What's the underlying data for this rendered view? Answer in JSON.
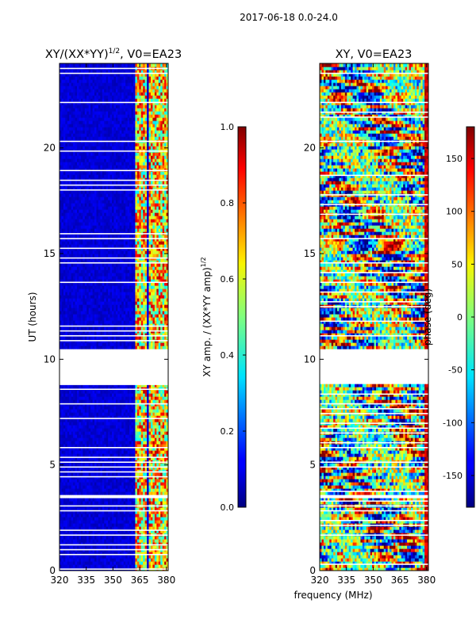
{
  "suptitle": "2017-06-18 0.0-24.0",
  "common_xlabel": "frequency (MHz)",
  "chart_data": [
    {
      "type": "heatmap",
      "title": "XY/(XX*YY)^1/2, V0=EA23",
      "title_main": "XY/(XX*YY)",
      "title_sup": "1/2",
      "title_tail": ", V0=EA23",
      "ylabel": "UT (hours)",
      "xlim": [
        320,
        381
      ],
      "ylim": [
        0,
        24
      ],
      "xticks": [
        "320",
        "335",
        "350",
        "365",
        "380"
      ],
      "yticks": [
        "0",
        "5",
        "10",
        "15",
        "20"
      ],
      "colorbar": {
        "label": "XY amp. / (XX*YY amp)^1/2",
        "label_main": "XY amp. / (XX*YY amp)",
        "label_sup": "1/2",
        "range": [
          0.0,
          1.0
        ],
        "ticks": [
          "0.0",
          "0.2",
          "0.4",
          "0.6",
          "0.8",
          "1.0"
        ],
        "colormap": "jet"
      }
    },
    {
      "type": "heatmap",
      "title": "XY, V0=EA23",
      "ylabel": "",
      "xlim": [
        320,
        381
      ],
      "ylim": [
        0,
        24
      ],
      "xticks": [
        "320",
        "335",
        "350",
        "365",
        "380"
      ],
      "yticks": [
        "0",
        "5",
        "10",
        "15",
        "20"
      ],
      "colorbar": {
        "label": "phase (deg)",
        "range": [
          -180,
          180
        ],
        "ticks": [
          "-150",
          "-100",
          "-50",
          "0",
          "50",
          "100",
          "150"
        ],
        "colormap": "jet"
      }
    }
  ],
  "data_gaps_hours": [
    [
      8.8,
      10.4
    ],
    [
      3.35,
      3.55
    ]
  ],
  "strong_channel_bands_mhz": [
    [
      362,
      365
    ],
    [
      366,
      368.5
    ],
    [
      370,
      373
    ],
    [
      374.5,
      377
    ],
    [
      377.5,
      380
    ]
  ]
}
